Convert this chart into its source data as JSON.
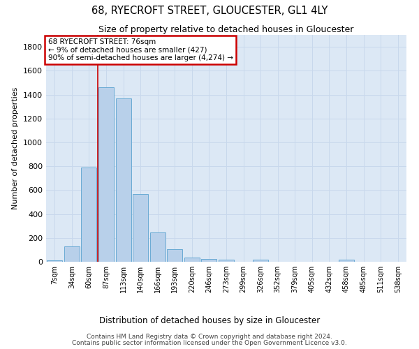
{
  "title": "68, RYECROFT STREET, GLOUCESTER, GL1 4LY",
  "subtitle": "Size of property relative to detached houses in Gloucester",
  "xlabel": "Distribution of detached houses by size in Gloucester",
  "ylabel": "Number of detached properties",
  "bar_categories": [
    "7sqm",
    "34sqm",
    "60sqm",
    "87sqm",
    "113sqm",
    "140sqm",
    "166sqm",
    "193sqm",
    "220sqm",
    "246sqm",
    "273sqm",
    "299sqm",
    "326sqm",
    "352sqm",
    "379sqm",
    "405sqm",
    "432sqm",
    "458sqm",
    "485sqm",
    "511sqm",
    "538sqm"
  ],
  "bar_values": [
    10,
    130,
    790,
    1460,
    1370,
    570,
    245,
    105,
    35,
    25,
    20,
    0,
    15,
    0,
    0,
    0,
    0,
    20,
    0,
    0,
    0
  ],
  "bar_color": "#b8d0ea",
  "bar_edge_color": "#6aaad4",
  "ylim": [
    0,
    1900
  ],
  "yticks": [
    0,
    200,
    400,
    600,
    800,
    1000,
    1200,
    1400,
    1600,
    1800
  ],
  "grid_color": "#c8d8ec",
  "background_color": "#dce8f5",
  "annotation_box_text": "68 RYECROFT STREET: 76sqm\n← 9% of detached houses are smaller (427)\n90% of semi-detached houses are larger (4,274) →",
  "annotation_box_color": "#ffffff",
  "annotation_box_edge_color": "#cc0000",
  "vline_x": 2.5,
  "vline_color": "#cc0000",
  "footnote1": "Contains HM Land Registry data © Crown copyright and database right 2024.",
  "footnote2": "Contains public sector information licensed under the Open Government Licence v3.0."
}
